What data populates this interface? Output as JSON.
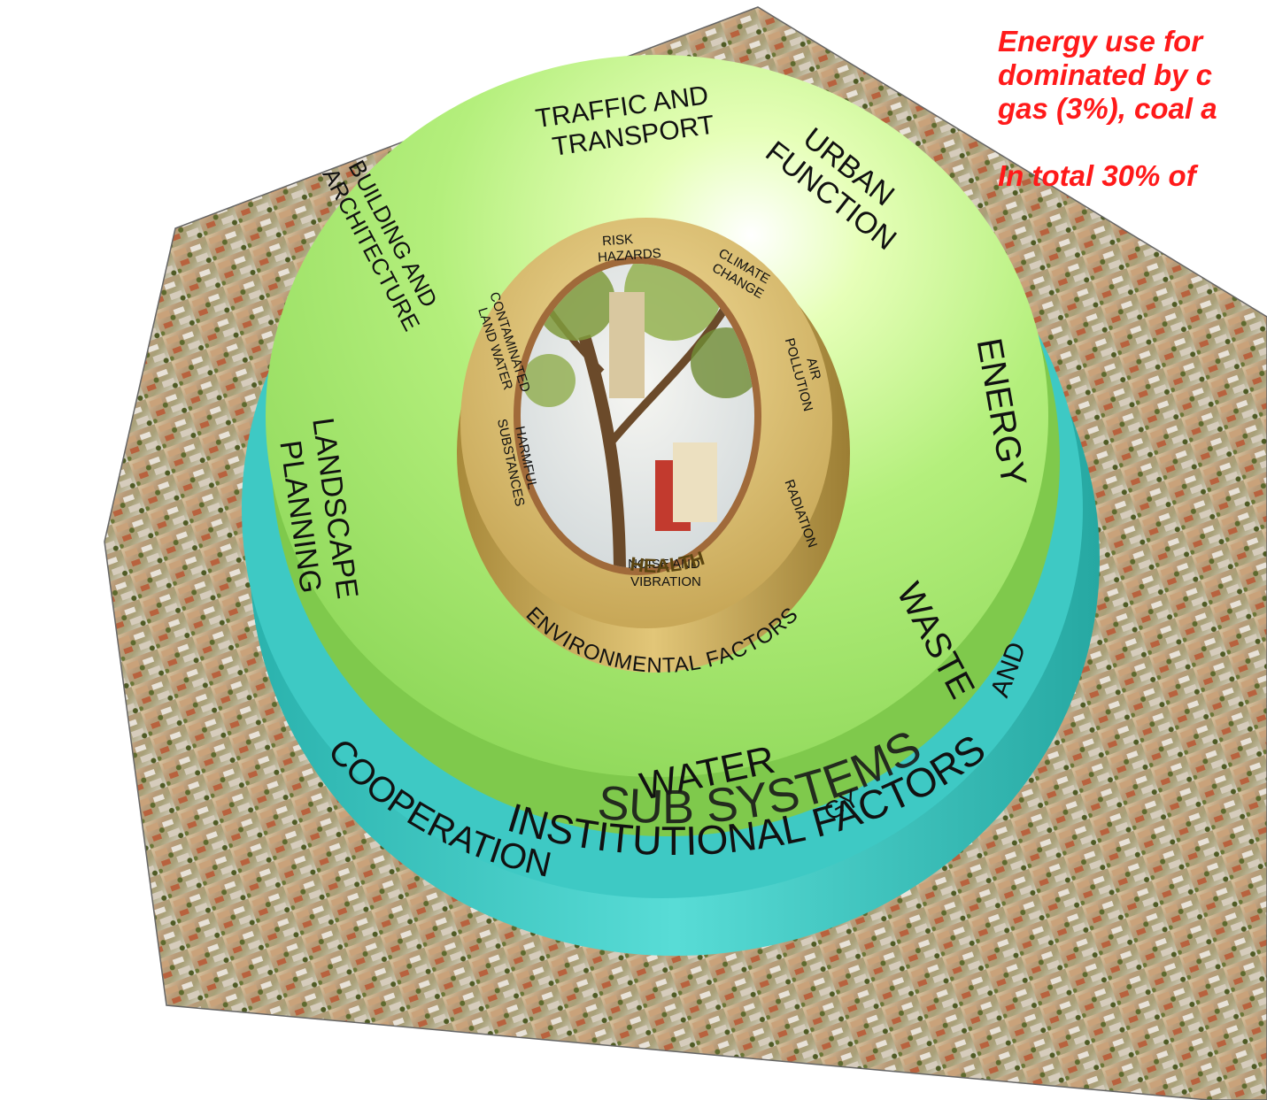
{
  "diagram": {
    "outer_ring_labels": {
      "traffic": [
        "TRAFFIC AND",
        "TRANSPORT"
      ],
      "urban": [
        "URBAN",
        "FUNCTION"
      ],
      "building": [
        "BUILDING AND",
        "ARCHITECTURE"
      ],
      "energy": "ENERGY",
      "landscape": [
        "LANDSCAPE",
        "PLANNING"
      ],
      "waste": "WASTE",
      "water": "WATER"
    },
    "sub_systems": "SUB SYSTEMS",
    "base_ring": {
      "cooperation": "COOPERATION",
      "institutional": "INSTITUTIONAL FACTORS",
      "extra": "AND",
      "strategy": "GY"
    },
    "inner_ring_labels": {
      "risk": [
        "RISK",
        "HAZARDS"
      ],
      "climate": [
        "CLIMATE",
        "CHANGE"
      ],
      "air": [
        "AIR",
        "POLLUTION"
      ],
      "radiation": "RADIATION",
      "noise": [
        "NOISE AND",
        "VIBRATION"
      ],
      "harmful": [
        "HARMFUL",
        "SUBSTANCES"
      ],
      "contaminated": [
        "CONTAMINATED",
        "LAND WATER"
      ],
      "health": "HEALTH",
      "environmental": "ENVIRONMENTAL FACTORS"
    }
  },
  "callout": {
    "lines": [
      "Energy use for",
      "dominated by c",
      "gas (3%), coal a"
    ],
    "total": "In total 30% of"
  },
  "colors": {
    "callout_text": "#ff1a1a",
    "outer_disc": "#a8ea70",
    "base_disc": "#3ec9c4",
    "inner_disc": "#c8a850"
  }
}
